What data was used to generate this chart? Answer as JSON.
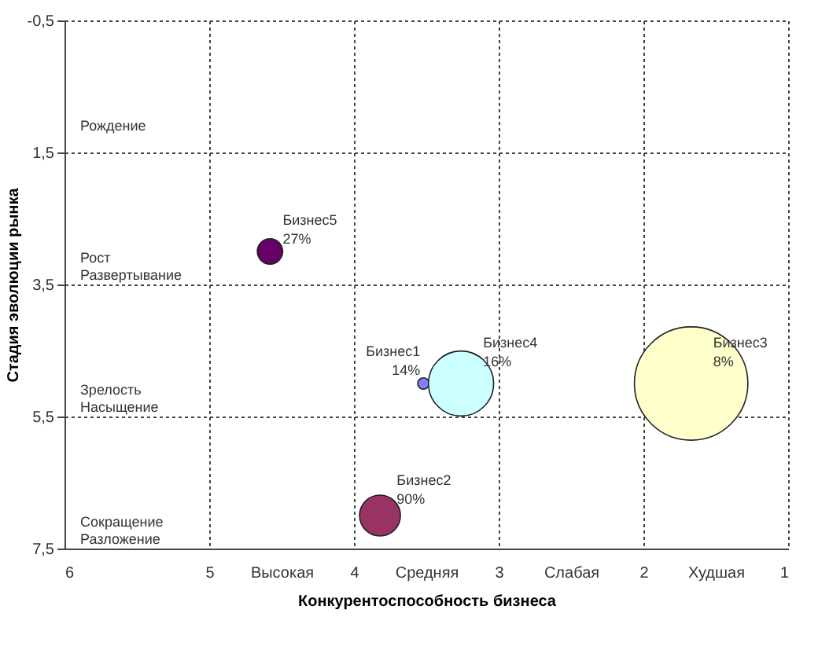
{
  "chart_data": {
    "type": "bubble",
    "xlabel": "Конкурентоспособность бизнеса",
    "ylabel": "Стадия эволюции рынка",
    "xlim": [
      6,
      1
    ],
    "xticks": [
      6,
      5,
      4,
      3,
      2,
      1,
      {
        "value": 4.5,
        "label": "Высокая"
      },
      {
        "value": 3.5,
        "label": "Средняя"
      },
      {
        "value": 2.5,
        "label": "Слабая"
      },
      {
        "value": 1.5,
        "label": "Худшая"
      }
    ],
    "ylim": [
      7.5,
      -0.5
    ],
    "yticks": [
      {
        "value": -0.5,
        "label": "-0,5"
      },
      {
        "value": 1.5,
        "label": "1,5"
      },
      {
        "value": 3.5,
        "label": "3,5"
      },
      {
        "value": 5.5,
        "label": "5,5"
      },
      {
        "value": 7.5,
        "label": "7,5"
      }
    ],
    "grid": true,
    "series": [
      {
        "name": "Бизнес5",
        "color": "#660066",
        "x": [
          4.58
        ],
        "values": [
          3.0
        ],
        "sizes": [
          0.05
        ]
      },
      {
        "name": "Бизнес2",
        "color": "#993366",
        "x": [
          3.82
        ],
        "values": [
          7.0
        ],
        "sizes": [
          0.13
        ]
      },
      {
        "name": "Бизнес1",
        "color": "#8080ff",
        "x": [
          3.52
        ],
        "values": [
          5.0
        ],
        "sizes": [
          0.01
        ]
      },
      {
        "name": "Бизнес4",
        "color": "#ccffff",
        "x": [
          3.26
        ],
        "values": [
          5.0
        ],
        "sizes": [
          0.33
        ]
      },
      {
        "name": "Бизнес3",
        "color": "#ffffcc",
        "x": [
          1.67
        ],
        "values": [
          5.0
        ],
        "sizes": [
          1
        ]
      }
    ],
    "annotations": [
      "Рождение",
      "Рост\nРазвертывание",
      "Зрелость\nНасыщение",
      "Сокращение\nРазложение",
      {
        "text": "27%",
        "x": 4.58,
        "y": 3.0
      },
      {
        "text": "90%",
        "x": 3.82,
        "y": 7.0
      },
      {
        "text": "14%",
        "x": 3.52,
        "y": 5.0
      },
      {
        "text": "16%",
        "x": 3.26,
        "y": 5.0
      },
      {
        "text": "8%",
        "x": 1.67,
        "y": 5.0
      }
    ]
  }
}
